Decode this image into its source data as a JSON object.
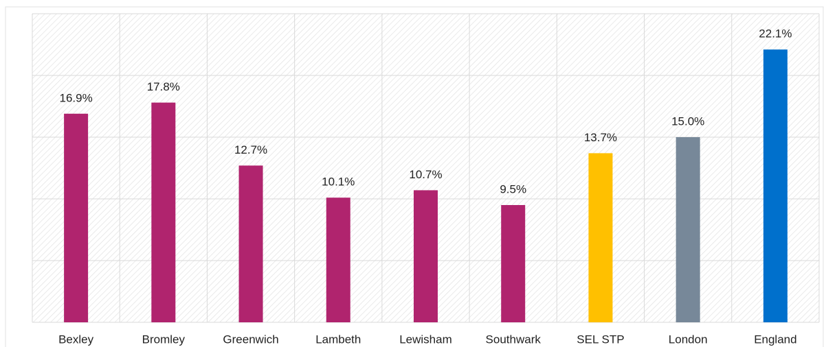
{
  "chart_data": {
    "type": "bar",
    "categories": [
      "Bexley",
      "Bromley",
      "Greenwich",
      "Lambeth",
      "Lewisham",
      "Southwark",
      "SEL STP",
      "London",
      "England"
    ],
    "values": [
      16.9,
      17.8,
      12.7,
      10.1,
      10.7,
      9.5,
      13.7,
      15.0,
      22.1
    ],
    "value_labels": [
      "16.9%",
      "17.8%",
      "12.7%",
      "10.1%",
      "10.7%",
      "9.5%",
      "13.7%",
      "15.0%",
      "22.1%"
    ],
    "colors": [
      "#b0246e",
      "#b0246e",
      "#b0246e",
      "#b0246e",
      "#b0246e",
      "#b0246e",
      "#ffc000",
      "#778899",
      "#0070cc"
    ],
    "ylim": [
      0,
      25
    ],
    "yticks": [
      0,
      5,
      10,
      15,
      20,
      25
    ],
    "grid": true
  }
}
